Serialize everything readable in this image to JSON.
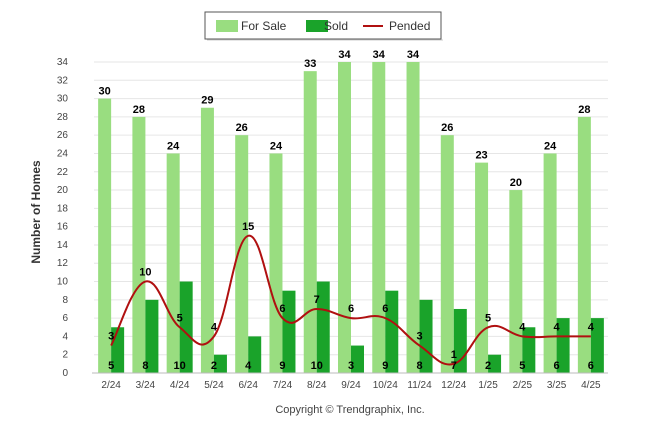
{
  "chart_data": {
    "type": "bar",
    "categories": [
      "2/24",
      "3/24",
      "4/24",
      "5/24",
      "6/24",
      "7/24",
      "8/24",
      "9/24",
      "10/24",
      "11/24",
      "12/24",
      "1/25",
      "2/25",
      "3/25",
      "4/25"
    ],
    "series": [
      {
        "name": "For Sale",
        "type": "bar",
        "color": "#99dd80",
        "values": [
          30,
          28,
          24,
          29,
          26,
          24,
          33,
          34,
          34,
          34,
          26,
          23,
          20,
          24,
          28
        ]
      },
      {
        "name": "Sold",
        "type": "bar",
        "color": "#1aa32a",
        "values": [
          5,
          8,
          10,
          2,
          4,
          9,
          10,
          3,
          9,
          8,
          7,
          2,
          5,
          6,
          6
        ]
      },
      {
        "name": "Pended",
        "type": "line",
        "color": "#b01010",
        "values": [
          3,
          10,
          5,
          4,
          15,
          6,
          7,
          6,
          6,
          3,
          1,
          5,
          4,
          4,
          4
        ]
      }
    ],
    "ylabel": "Number of Homes",
    "xlabel": "",
    "ylim": [
      0,
      34
    ],
    "yticks": [
      0,
      2,
      4,
      6,
      8,
      10,
      12,
      14,
      16,
      18,
      20,
      22,
      24,
      26,
      28,
      30,
      32,
      34
    ],
    "grid": true,
    "legend_position": "top-center",
    "copyright": "Copyright © Trendgraphix, Inc."
  }
}
